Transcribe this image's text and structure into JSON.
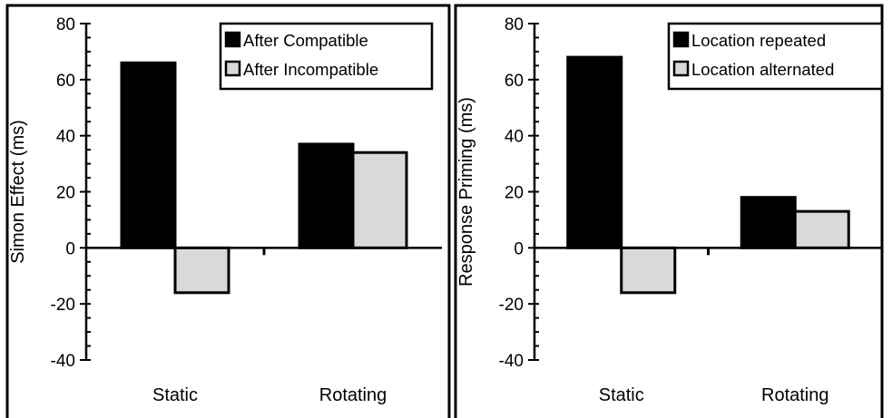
{
  "chart_data": [
    {
      "type": "bar",
      "categories": [
        "Static",
        "Rotating"
      ],
      "ylabel": "Simon Effect (ms)",
      "xlabel": "",
      "ylim": [
        -40,
        80
      ],
      "yticks": [
        80,
        60,
        40,
        20,
        0,
        -20,
        -40
      ],
      "ytick_labels": [
        "80",
        "60",
        "40",
        "20",
        "0",
        "-20",
        "-40"
      ],
      "series": [
        {
          "name": "After Compatible",
          "color": "#000000",
          "values": [
            66,
            37
          ]
        },
        {
          "name": "After Incompatible",
          "color": "#d9d9d9",
          "values": [
            -16,
            34
          ]
        }
      ],
      "legend_position": "top-right",
      "grid": false
    },
    {
      "type": "bar",
      "categories": [
        "Static",
        "Rotating"
      ],
      "ylabel": "Response Priming (ms)",
      "xlabel": "",
      "ylim": [
        -40,
        80
      ],
      "yticks": [
        80,
        60,
        40,
        20,
        0,
        -20,
        -40
      ],
      "ytick_labels": [
        "80",
        "60",
        "40",
        "20",
        "0",
        "-20",
        "-40"
      ],
      "series": [
        {
          "name": "Location repeated",
          "color": "#000000",
          "values": [
            68,
            18
          ]
        },
        {
          "name": "Location alternated",
          "color": "#d9d9d9",
          "values": [
            -16,
            13
          ]
        }
      ],
      "legend_position": "top-right",
      "grid": false
    }
  ]
}
